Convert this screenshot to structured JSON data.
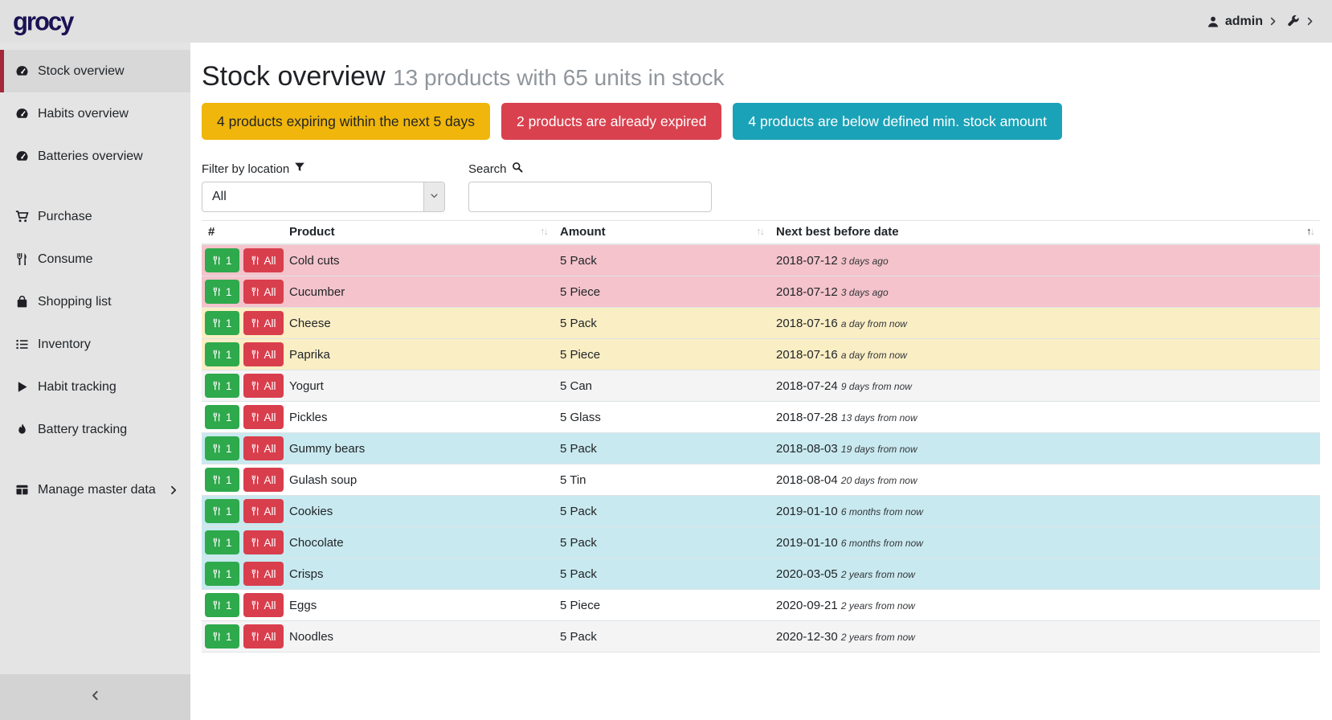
{
  "app": {
    "logo_text": "grocy"
  },
  "topbar": {
    "user_name": "admin",
    "user_icon": "person",
    "settings_icon": "wrench"
  },
  "sidebar": {
    "groups": [
      {
        "items": [
          {
            "icon": "gauge",
            "label": "Stock overview",
            "active": true
          },
          {
            "icon": "gauge",
            "label": "Habits overview",
            "active": false
          },
          {
            "icon": "gauge",
            "label": "Batteries overview",
            "active": false
          }
        ]
      },
      {
        "items": [
          {
            "icon": "cart",
            "label": "Purchase",
            "active": false
          },
          {
            "icon": "utensils",
            "label": "Consume",
            "active": false
          },
          {
            "icon": "bag",
            "label": "Shopping list",
            "active": false
          },
          {
            "icon": "list",
            "label": "Inventory",
            "active": false
          },
          {
            "icon": "play",
            "label": "Habit tracking",
            "active": false
          },
          {
            "icon": "flame",
            "label": "Battery tracking",
            "active": false
          }
        ]
      },
      {
        "items": [
          {
            "icon": "grid",
            "label": "Manage master data",
            "active": false,
            "chevron": true
          }
        ]
      }
    ],
    "collapse_icon": "chevron-left"
  },
  "page": {
    "title": "Stock overview",
    "subtitle": "13 products with 65 units in stock"
  },
  "badges": [
    {
      "label": "4 products expiring within the next 5 days",
      "bg": "#f1b60b",
      "fg": "#212529"
    },
    {
      "label": "2 products are already expired",
      "bg": "#d9414e",
      "fg": "#ffffff"
    },
    {
      "label": "4 products are below defined min. stock amount",
      "bg": "#1aa2b8",
      "fg": "#ffffff"
    }
  ],
  "filters": {
    "location_label": "Filter by location",
    "location_icon": "funnel",
    "location_value": "All",
    "search_label": "Search",
    "search_icon": "search",
    "search_value": ""
  },
  "table": {
    "columns": [
      {
        "label": "#",
        "sortable": false,
        "sort": null
      },
      {
        "label": "Product",
        "sortable": true,
        "sort": null
      },
      {
        "label": "Amount",
        "sortable": true,
        "sort": null
      },
      {
        "label": "Next best before date",
        "sortable": true,
        "sort": "asc"
      }
    ],
    "row_buttons": {
      "consume_one": "1",
      "consume_all": "All",
      "icon": "utensils"
    },
    "rows": [
      {
        "product": "Cold cuts",
        "amount": "5 Pack",
        "date": "2018-07-12",
        "timeago": "3 days ago",
        "status": "danger"
      },
      {
        "product": "Cucumber",
        "amount": "5 Piece",
        "date": "2018-07-12",
        "timeago": "3 days ago",
        "status": "danger"
      },
      {
        "product": "Cheese",
        "amount": "5 Pack",
        "date": "2018-07-16",
        "timeago": "a day from now",
        "status": "warning"
      },
      {
        "product": "Paprika",
        "amount": "5 Piece",
        "date": "2018-07-16",
        "timeago": "a day from now",
        "status": "warning"
      },
      {
        "product": "Yogurt",
        "amount": "5 Can",
        "date": "2018-07-24",
        "timeago": "9 days from now",
        "status": "stripe"
      },
      {
        "product": "Pickles",
        "amount": "5 Glass",
        "date": "2018-07-28",
        "timeago": "13 days from now",
        "status": "none"
      },
      {
        "product": "Gummy bears",
        "amount": "5 Pack",
        "date": "2018-08-03",
        "timeago": "19 days from now",
        "status": "info"
      },
      {
        "product": "Gulash soup",
        "amount": "5 Tin",
        "date": "2018-08-04",
        "timeago": "20 days from now",
        "status": "none"
      },
      {
        "product": "Cookies",
        "amount": "5 Pack",
        "date": "2019-01-10",
        "timeago": "6 months from now",
        "status": "info"
      },
      {
        "product": "Chocolate",
        "amount": "5 Pack",
        "date": "2019-01-10",
        "timeago": "6 months from now",
        "status": "info"
      },
      {
        "product": "Crisps",
        "amount": "5 Pack",
        "date": "2020-03-05",
        "timeago": "2 years from now",
        "status": "info"
      },
      {
        "product": "Eggs",
        "amount": "5 Piece",
        "date": "2020-09-21",
        "timeago": "2 years from now",
        "status": "none"
      },
      {
        "product": "Noodles",
        "amount": "5 Pack",
        "date": "2020-12-30",
        "timeago": "2 years from now",
        "status": "stripe"
      }
    ]
  },
  "colors": {
    "topbar_bg": "#e0e0e0",
    "sidebar_bg": "#e4e4e4",
    "sidebar_active_bg": "#d8d8d8",
    "sidebar_active_border": "#a5273a",
    "logo": "#1b1254",
    "row_expired": "#f4c3cb",
    "row_expiring": "#faeec4",
    "row_below_min": "#c8e9ef",
    "row_stripe": "#f4f4f4",
    "btn_consume_one": "#2ea94c",
    "btn_consume_all": "#d93e4d"
  }
}
